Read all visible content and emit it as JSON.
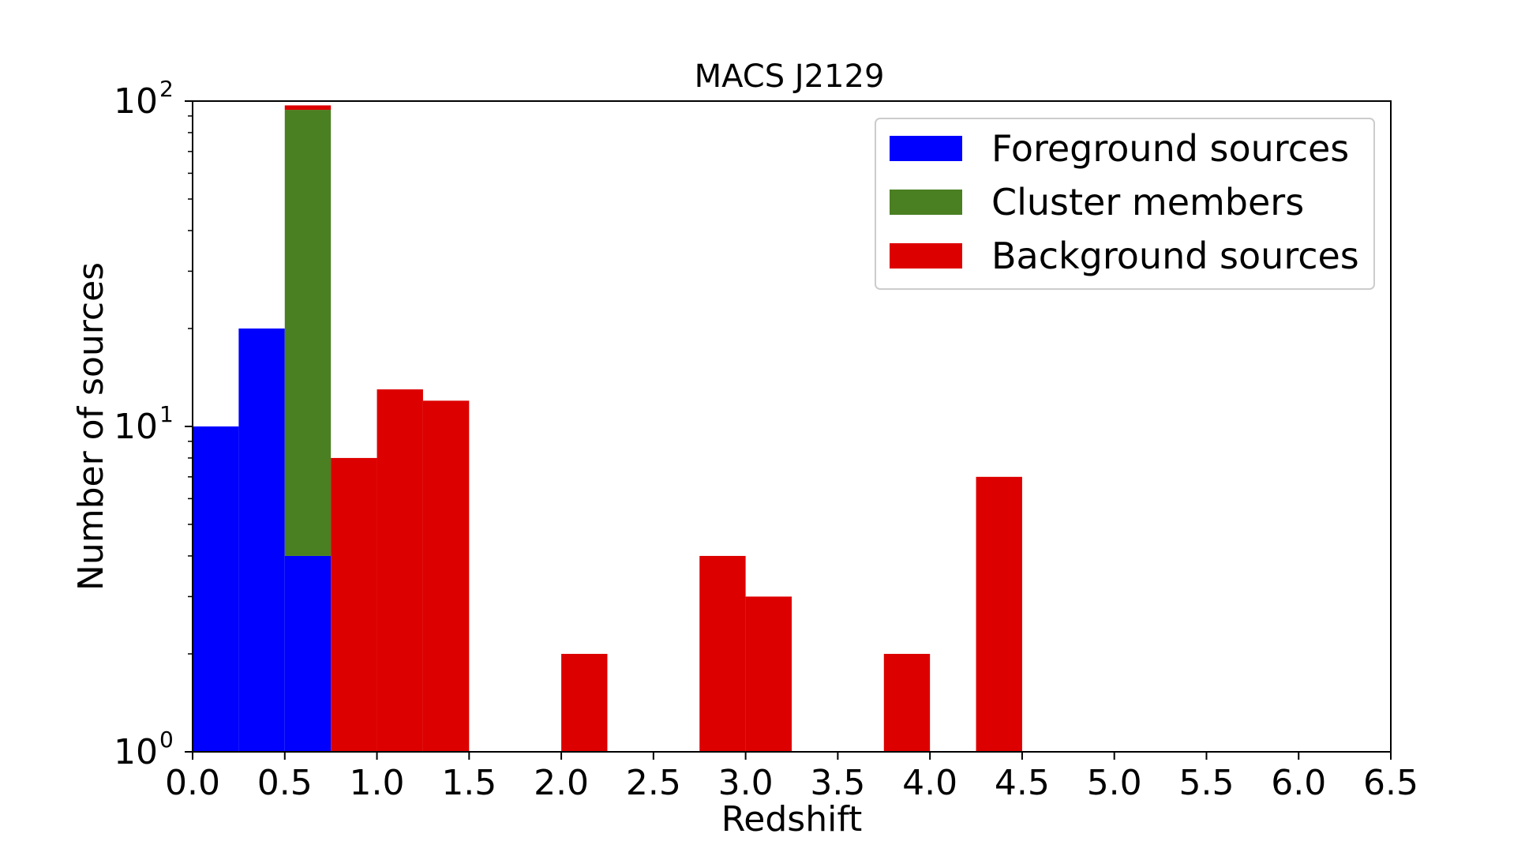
{
  "chart_data": {
    "type": "bar",
    "stacked": true,
    "title": "MACS J2129",
    "xlabel": "Redshift",
    "ylabel": "Number of sources",
    "yscale": "log",
    "ylim": [
      1,
      100
    ],
    "xlim": [
      0,
      6.5
    ],
    "grid": false,
    "legend_position": "top-right",
    "bin_width": 0.25,
    "x_ticks": [
      "0.0",
      "0.5",
      "1.0",
      "1.5",
      "2.0",
      "2.5",
      "3.0",
      "3.5",
      "4.0",
      "4.5",
      "5.0",
      "5.5",
      "6.0",
      "6.5"
    ],
    "y_ticks": [
      {
        "value": 1,
        "base": "10",
        "exp": "0"
      },
      {
        "value": 10,
        "base": "10",
        "exp": "1"
      },
      {
        "value": 100,
        "base": "10",
        "exp": "2"
      }
    ],
    "series": [
      {
        "name": "Foreground sources",
        "color": "#0000ff",
        "bins": [
          {
            "x0": 0.0,
            "x1": 0.25,
            "value": 10
          },
          {
            "x0": 0.25,
            "x1": 0.5,
            "value": 20
          },
          {
            "x0": 0.5,
            "x1": 0.75,
            "value": 4
          }
        ]
      },
      {
        "name": "Cluster members",
        "color": "#4a7f22",
        "bins": [
          {
            "x0": 0.5,
            "x1": 0.75,
            "value": 90
          }
        ]
      },
      {
        "name": "Background sources",
        "color": "#dd0000",
        "bins": [
          {
            "x0": 0.5,
            "x1": 0.75,
            "value": 3
          },
          {
            "x0": 0.75,
            "x1": 1.0,
            "value": 8
          },
          {
            "x0": 1.0,
            "x1": 1.25,
            "value": 13
          },
          {
            "x0": 1.25,
            "x1": 1.5,
            "value": 12
          },
          {
            "x0": 2.0,
            "x1": 2.25,
            "value": 2
          },
          {
            "x0": 2.75,
            "x1": 3.0,
            "value": 4
          },
          {
            "x0": 3.0,
            "x1": 3.25,
            "value": 3
          },
          {
            "x0": 3.75,
            "x1": 4.0,
            "value": 2
          },
          {
            "x0": 4.25,
            "x1": 4.5,
            "value": 7
          }
        ]
      }
    ]
  }
}
